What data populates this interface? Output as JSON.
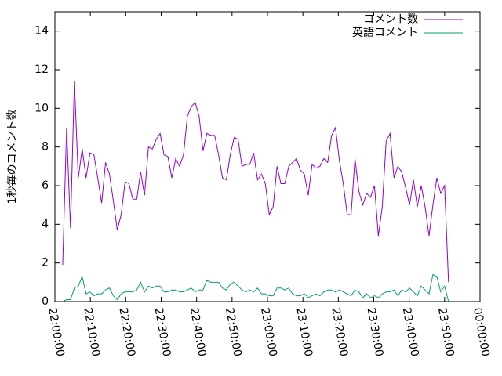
{
  "chart_data": {
    "type": "line",
    "y_label": "1秒毎のコメント数",
    "x": [
      2.2,
      3.3,
      4.4,
      5.5,
      6.6,
      7.7,
      8.8,
      9.9,
      11,
      12.1,
      13.2,
      14.3,
      15.4,
      16.5,
      17.6,
      18.7,
      19.8,
      20.9,
      22,
      23.1,
      24.2,
      25.3,
      26.4,
      27.5,
      28.6,
      29.7,
      30.8,
      31.9,
      33,
      34.1,
      35.2,
      36.3,
      37.4,
      38.5,
      39.6,
      40.7,
      41.8,
      42.9,
      44,
      45.1,
      46.2,
      47.3,
      48.4,
      49.5,
      50.6,
      51.7,
      52.8,
      53.9,
      55,
      56.1,
      57.2,
      58.3,
      59.4,
      60.5,
      61.6,
      62.7,
      63.8,
      64.9,
      66,
      67.1,
      68.2,
      69.3,
      70.4,
      71.5,
      72.6,
      73.7,
      74.8,
      75.9,
      77,
      78.1,
      79.2,
      80.3,
      81.4,
      82.5,
      83.6,
      84.7,
      85.8,
      86.9,
      88,
      89.1,
      90.2,
      91.3,
      92.4,
      93.5,
      94.6,
      95.7,
      96.8,
      97.9,
      99,
      100.1,
      101.2,
      102.3,
      103.4,
      104.5,
      105.6,
      106.7,
      107.8,
      108.9,
      110,
      111.1
    ],
    "series": [
      {
        "name": "コメント数",
        "color": "#9400d3",
        "values": [
          1.9,
          9.0,
          3.8,
          11.4,
          6.4,
          7.9,
          6.4,
          7.7,
          7.6,
          6.4,
          5.1,
          7.2,
          6.6,
          5.2,
          3.7,
          4.5,
          6.2,
          6.1,
          5.3,
          5.3,
          6.7,
          5.5,
          8.0,
          7.9,
          8.4,
          8.7,
          7.6,
          7.5,
          6.4,
          7.4,
          7.0,
          7.6,
          9.6,
          10.1,
          10.3,
          9.6,
          7.8,
          8.7,
          8.6,
          8.6,
          7.6,
          6.4,
          6.3,
          7.6,
          8.5,
          8.4,
          7.0,
          7.1,
          7.1,
          7.7,
          6.3,
          6.6,
          6.1,
          4.5,
          4.9,
          7.0,
          6.1,
          6.1,
          7.0,
          7.2,
          7.4,
          6.8,
          6.6,
          5.5,
          7.1,
          6.9,
          7.0,
          7.4,
          7.2,
          8.6,
          9.0,
          7.3,
          6.1,
          4.5,
          4.5,
          7.4,
          5.7,
          5.0,
          5.6,
          5.4,
          6.0,
          3.4,
          4.9,
          8.3,
          8.7,
          6.4,
          7.0,
          6.7,
          5.9,
          5.0,
          6.3,
          4.9,
          6.0,
          4.9,
          3.4,
          5.0,
          6.4,
          5.6,
          6.0,
          1.0
        ]
      },
      {
        "name": "英語コメント",
        "color": "#009e73",
        "values": [
          0,
          0.1,
          0.1,
          0.7,
          0.8,
          1.3,
          0.4,
          0.5,
          0.3,
          0.4,
          0.4,
          0.6,
          0.7,
          0.3,
          0.1,
          0.4,
          0.5,
          0.5,
          0.5,
          0.6,
          1.0,
          0.5,
          0.8,
          0.7,
          0.8,
          0.8,
          0.5,
          0.5,
          0.6,
          0.6,
          0.5,
          0.5,
          0.6,
          0.7,
          0.5,
          0.6,
          0.6,
          1.1,
          1.0,
          1.0,
          1.0,
          0.7,
          0.6,
          0.9,
          1.0,
          0.8,
          0.6,
          0.5,
          0.6,
          0.5,
          0.7,
          0.4,
          0.4,
          0.3,
          0.3,
          0.7,
          0.7,
          0.6,
          0.7,
          0.4,
          0.3,
          0.3,
          0.4,
          0.2,
          0.3,
          0.4,
          0.3,
          0.5,
          0.6,
          0.6,
          0.5,
          0.6,
          0.5,
          0.4,
          0.3,
          0.6,
          0.5,
          0.2,
          0.4,
          0.2,
          0.3,
          0.2,
          0.4,
          0.5,
          0.5,
          0.6,
          0.3,
          0.6,
          0.5,
          0.7,
          0.5,
          0.3,
          0.8,
          0.6,
          0.4,
          1.4,
          1.3,
          0.5,
          0.8,
          0.0
        ]
      }
    ],
    "xlim": [
      0,
      120
    ],
    "xticks": [
      {
        "value": 0,
        "label": "22:00:00"
      },
      {
        "value": 10,
        "label": "22:10:00"
      },
      {
        "value": 20,
        "label": "22:20:00"
      },
      {
        "value": 30,
        "label": "22:30:00"
      },
      {
        "value": 40,
        "label": "22:40:00"
      },
      {
        "value": 50,
        "label": "22:50:00"
      },
      {
        "value": 60,
        "label": "23:00:00"
      },
      {
        "value": 70,
        "label": "23:10:00"
      },
      {
        "value": 80,
        "label": "23:20:00"
      },
      {
        "value": 90,
        "label": "23:30:00"
      },
      {
        "value": 100,
        "label": "23:40:00"
      },
      {
        "value": 110,
        "label": "23:50:00"
      },
      {
        "value": 120,
        "label": "00:00:00"
      }
    ],
    "ylim": [
      0,
      15
    ],
    "yticks": [
      0,
      2,
      4,
      6,
      8,
      10,
      12,
      14
    ],
    "legend": "top-right"
  }
}
